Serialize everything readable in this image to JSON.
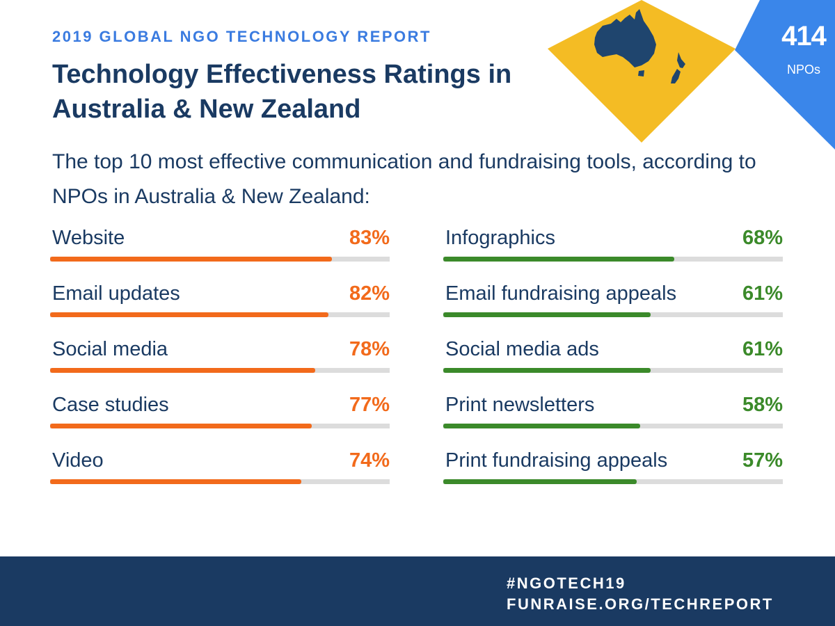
{
  "header": {
    "kicker": "2019 GLOBAL NGO TECHNOLOGY REPORT",
    "title": "Technology Effectiveness Ratings in Australia & New Zealand",
    "subtitle": "The top 10 most effective communication and fundraising tools, according to NPOs in Australia & New Zealand:"
  },
  "badge": {
    "number": "414",
    "unit": "NPOs",
    "color": "#3a86ea"
  },
  "map": {
    "icon": "australia-new-zealand-map-icon",
    "diamond_color": "#f4bc24",
    "land_color": "#1f456e"
  },
  "colors": {
    "left": "#f26a1b",
    "right": "#3b8a2a",
    "track": "#dcdcdc",
    "text": "#1a3a62"
  },
  "chart_data": {
    "type": "bar",
    "unit": "%",
    "xlim": [
      0,
      100
    ],
    "left": [
      {
        "label": "Website",
        "value": 83,
        "display": "83%"
      },
      {
        "label": "Email updates",
        "value": 82,
        "display": "82%"
      },
      {
        "label": "Social media",
        "value": 78,
        "display": "78%"
      },
      {
        "label": "Case studies",
        "value": 77,
        "display": "77%"
      },
      {
        "label": "Video",
        "value": 74,
        "display": "74%"
      }
    ],
    "right": [
      {
        "label": "Infographics",
        "value": 68,
        "display": "68%"
      },
      {
        "label": "Email fundraising appeals",
        "value": 61,
        "display": "61%"
      },
      {
        "label": "Social media ads",
        "value": 61,
        "display": "61%"
      },
      {
        "label": "Print newsletters",
        "value": 58,
        "display": "58%"
      },
      {
        "label": "Print fundraising appeals",
        "value": 57,
        "display": "57%"
      }
    ]
  },
  "footer": {
    "hashtag": "#NGOTECH19",
    "url": "FUNRAISE.ORG/TECHREPORT"
  }
}
